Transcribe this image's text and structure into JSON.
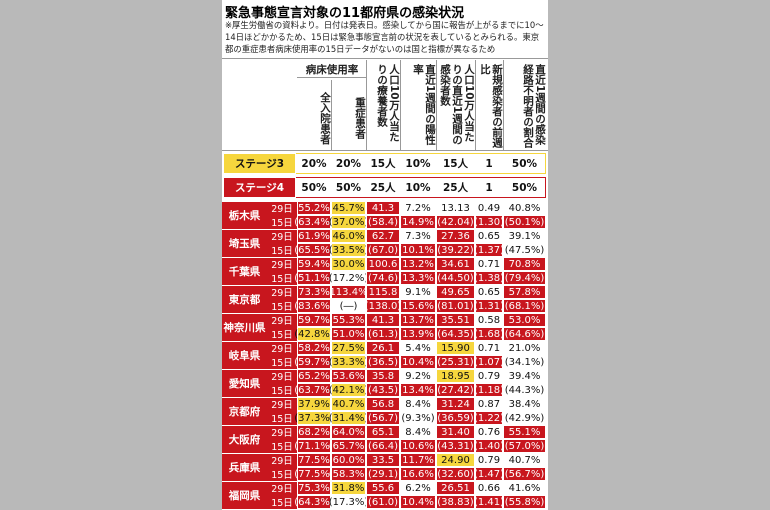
{
  "title": "緊急事態宣言対象の11都府県の感染状況",
  "note": "※厚生労働省の資料より。日付は発表日。感染してから国に報告が上がるまでに10～14日ほどかかるため、15日は緊急事態宣言前の状況を表しているとみられる。東京都の重症患者病床使用率の15日データがないのは国と指標が異なるため",
  "header": {
    "group": "病床使用率",
    "columns": [
      "全入院患者",
      "重症患者",
      "人口10万人当たりの療養者数",
      "直近1週間の陽性率",
      "人口10万人当たりの直近1週間の感染者数",
      "新規感染者の前週比",
      "直近1週間の感染経路不明者の割合"
    ]
  },
  "stages": [
    {
      "label": "ステージ3",
      "color": "yellow",
      "values": [
        "20%",
        "20%",
        "15人",
        "10%",
        "15人",
        "1",
        "50%"
      ]
    },
    {
      "label": "ステージ4",
      "color": "red",
      "values": [
        "50%",
        "50%",
        "25人",
        "10%",
        "25人",
        "1",
        "50%"
      ]
    }
  ],
  "dates": [
    "29日",
    "15日"
  ],
  "rows": [
    {
      "name": "栃木県",
      "values": [
        [
          "55.2%",
          "45.7%",
          "41.3",
          "7.2%",
          "13.13",
          "0.49",
          "40.8%"
        ],
        [
          "(63.4%)",
          "(37.0%)",
          "(58.4)",
          "(14.9%)",
          "(42.04)",
          "(1.30)",
          "(50.1%)"
        ]
      ],
      "colors": [
        [
          "red",
          "yellow",
          "red",
          "white",
          "white",
          "white",
          "white"
        ],
        [
          "red",
          "yellow",
          "red",
          "red",
          "red",
          "red",
          "red"
        ]
      ]
    },
    {
      "name": "埼玉県",
      "values": [
        [
          "61.9%",
          "46.0%",
          "62.7",
          "7.3%",
          "27.36",
          "0.65",
          "39.1%"
        ],
        [
          "(65.5%)",
          "(33.5%)",
          "(67.0)",
          "(10.1%)",
          "(39.22)",
          "(1.37)",
          "(47.5%)"
        ]
      ],
      "colors": [
        [
          "red",
          "yellow",
          "red",
          "white",
          "red",
          "white",
          "white"
        ],
        [
          "red",
          "yellow",
          "red",
          "red",
          "red",
          "red",
          "white"
        ]
      ]
    },
    {
      "name": "千葉県",
      "values": [
        [
          "59.4%",
          "30.0%",
          "100.6",
          "13.2%",
          "34.61",
          "0.71",
          "70.8%"
        ],
        [
          "(51.1%)",
          "(17.2%)",
          "(74.6)",
          "(13.3%)",
          "(44.50)",
          "(1.38)",
          "(79.4%)"
        ]
      ],
      "colors": [
        [
          "red",
          "yellow",
          "red",
          "red",
          "red",
          "white",
          "red"
        ],
        [
          "red",
          "white",
          "red",
          "red",
          "red",
          "red",
          "red"
        ]
      ]
    },
    {
      "name": "東京都",
      "values": [
        [
          "73.3%",
          "113.4%",
          "115.8",
          "9.1%",
          "49.65",
          "0.65",
          "57.8%"
        ],
        [
          "(83.6%)",
          "(―)",
          "(138.0)",
          "(15.6%)",
          "(81.01)",
          "(1.31)",
          "(68.1%)"
        ]
      ],
      "colors": [
        [
          "red",
          "red",
          "red",
          "white",
          "red",
          "white",
          "red"
        ],
        [
          "red",
          "white",
          "red",
          "red",
          "red",
          "red",
          "red"
        ]
      ]
    },
    {
      "name": "神奈川県",
      "values": [
        [
          "59.7%",
          "55.3%",
          "41.3",
          "13.7%",
          "35.51",
          "0.58",
          "53.0%"
        ],
        [
          "(42.8%)",
          "(51.0%)",
          "(61.3)",
          "(13.9%)",
          "(64.35)",
          "(1.68)",
          "(64.6%)"
        ]
      ],
      "colors": [
        [
          "red",
          "red",
          "red",
          "red",
          "red",
          "white",
          "red"
        ],
        [
          "yellow",
          "red",
          "red",
          "red",
          "red",
          "red",
          "red"
        ]
      ]
    },
    {
      "name": "岐阜県",
      "values": [
        [
          "58.2%",
          "27.5%",
          "26.1",
          "5.4%",
          "15.90",
          "0.71",
          "21.0%"
        ],
        [
          "(59.7%)",
          "(33.3%)",
          "(36.5)",
          "(10.4%)",
          "(25.31)",
          "(1.07)",
          "(34.1%)"
        ]
      ],
      "colors": [
        [
          "red",
          "yellow",
          "red",
          "white",
          "yellow",
          "white",
          "white"
        ],
        [
          "red",
          "yellow",
          "red",
          "red",
          "red",
          "red",
          "white"
        ]
      ]
    },
    {
      "name": "愛知県",
      "values": [
        [
          "65.2%",
          "53.6%",
          "35.8",
          "9.2%",
          "18.95",
          "0.79",
          "39.4%"
        ],
        [
          "(63.7%)",
          "(42.1%)",
          "(43.5)",
          "(13.4%)",
          "(27.42)",
          "(1.18)",
          "(44.3%)"
        ]
      ],
      "colors": [
        [
          "red",
          "red",
          "red",
          "white",
          "yellow",
          "white",
          "white"
        ],
        [
          "red",
          "yellow",
          "red",
          "red",
          "red",
          "red",
          "white"
        ]
      ]
    },
    {
      "name": "京都府",
      "values": [
        [
          "37.9%",
          "40.7%",
          "56.8",
          "8.4%",
          "31.24",
          "0.87",
          "38.4%"
        ],
        [
          "(37.3%)",
          "(31.4%)",
          "(56.7)",
          "(9.3%)",
          "(36.59)",
          "(1.22)",
          "(42.9%)"
        ]
      ],
      "colors": [
        [
          "yellow",
          "yellow",
          "red",
          "white",
          "red",
          "white",
          "white"
        ],
        [
          "yellow",
          "yellow",
          "red",
          "white",
          "red",
          "red",
          "white"
        ]
      ]
    },
    {
      "name": "大阪府",
      "values": [
        [
          "68.2%",
          "64.0%",
          "65.1",
          "8.4%",
          "31.40",
          "0.76",
          "55.1%"
        ],
        [
          "(71.1%)",
          "(65.7%)",
          "(66.4)",
          "(10.6%)",
          "(43.31)",
          "(1.40)",
          "(57.0%)"
        ]
      ],
      "colors": [
        [
          "red",
          "red",
          "red",
          "white",
          "red",
          "white",
          "red"
        ],
        [
          "red",
          "red",
          "red",
          "red",
          "red",
          "red",
          "red"
        ]
      ]
    },
    {
      "name": "兵庫県",
      "values": [
        [
          "77.5%",
          "60.0%",
          "33.5",
          "11.7%",
          "24.90",
          "0.79",
          "40.7%"
        ],
        [
          "(77.5%)",
          "(58.3%)",
          "(29.1)",
          "(16.6%)",
          "(32.60)",
          "(1.47)",
          "(56.7%)"
        ]
      ],
      "colors": [
        [
          "red",
          "red",
          "red",
          "red",
          "yellow",
          "white",
          "white"
        ],
        [
          "red",
          "red",
          "red",
          "red",
          "red",
          "red",
          "red"
        ]
      ]
    },
    {
      "name": "福岡県",
      "values": [
        [
          "75.3%",
          "31.8%",
          "55.6",
          "6.2%",
          "26.51",
          "0.66",
          "41.6%"
        ],
        [
          "(64.3%)",
          "(17.3%)",
          "(61.0)",
          "(10.4%)",
          "(38.83)",
          "(1.41)",
          "(55.8%)"
        ]
      ],
      "colors": [
        [
          "red",
          "yellow",
          "red",
          "white",
          "red",
          "white",
          "white"
        ],
        [
          "red",
          "white",
          "red",
          "red",
          "red",
          "red",
          "red"
        ]
      ]
    }
  ]
}
